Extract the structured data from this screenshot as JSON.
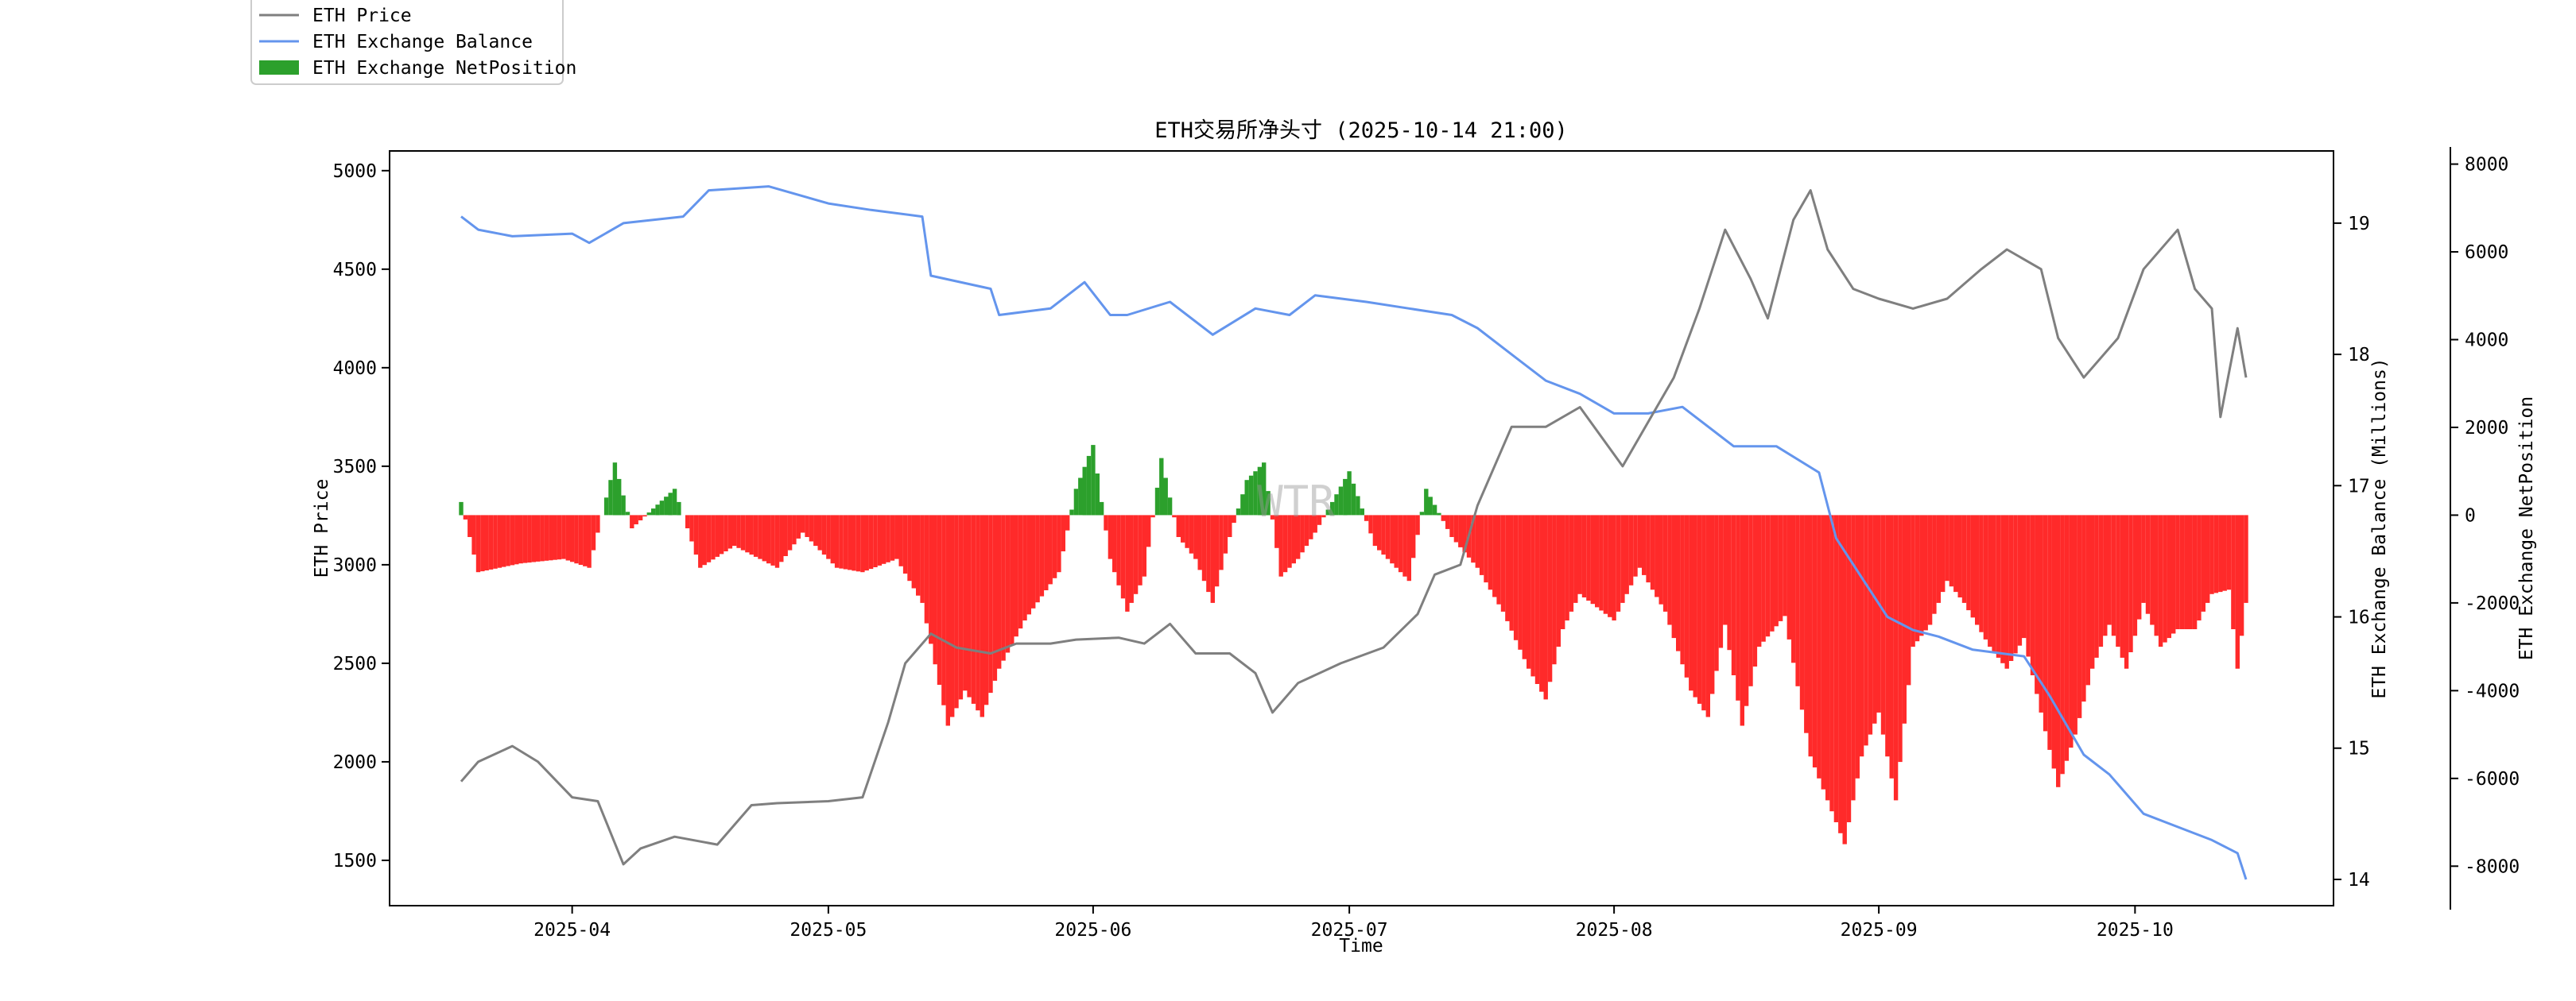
{
  "chart_data": {
    "type": "line",
    "title": "ETH交易所净头寸 (2025-10-14 21:00)",
    "xlabel": "Time",
    "ylabel_left": "ETH Price",
    "ylabel_right": "ETH Exchange Balance (Millions)",
    "ylabel_far_right": "ETH Exchange NetPosition",
    "watermark": "WTR",
    "x_ticks": [
      "2025-04",
      "2025-05",
      "2025-06",
      "2025-07",
      "2025-08",
      "2025-09",
      "2025-10"
    ],
    "x_range": [
      "2025-03-19",
      "2025-10-14"
    ],
    "y_left_range": [
      1270,
      5100
    ],
    "y_left_ticks": [
      "1500",
      "2000",
      "2500",
      "3000",
      "3500",
      "4000",
      "4500",
      "5000"
    ],
    "y_right_range": [
      13.8,
      19.55
    ],
    "y_right_ticks": [
      "14",
      "15",
      "16",
      "17",
      "18",
      "19"
    ],
    "y_far_right_range": [
      -8900,
      8300
    ],
    "y_far_right_ticks": [
      "8000",
      "6000",
      "4000",
      "2000",
      "0",
      "-2000",
      "-4000",
      "-6000",
      "-8000"
    ],
    "legend": {
      "placement": "top-left, outside plot",
      "entries": [
        "ETH Price",
        "ETH Exchange Balance",
        "ETH Exchange NetPosition"
      ]
    },
    "colors": {
      "price": "#7f7f7f",
      "balance": "#6495ed",
      "net_positive": "#2ca02c",
      "net_negative": "#ff2a2a"
    },
    "series": [
      {
        "name": "ETH Price",
        "axis": "left",
        "x": [
          "2025-03-19",
          "2025-03-21",
          "2025-03-25",
          "2025-03-28",
          "2025-04-01",
          "2025-04-04",
          "2025-04-07",
          "2025-04-09",
          "2025-04-13",
          "2025-04-18",
          "2025-04-22",
          "2025-04-25",
          "2025-05-01",
          "2025-05-05",
          "2025-05-08",
          "2025-05-10",
          "2025-05-13",
          "2025-05-16",
          "2025-05-20",
          "2025-05-23",
          "2025-05-27",
          "2025-05-30",
          "2025-06-04",
          "2025-06-07",
          "2025-06-10",
          "2025-06-13",
          "2025-06-17",
          "2025-06-20",
          "2025-06-22",
          "2025-06-25",
          "2025-06-30",
          "2025-07-05",
          "2025-07-09",
          "2025-07-11",
          "2025-07-14",
          "2025-07-16",
          "2025-07-20",
          "2025-07-24",
          "2025-07-28",
          "2025-08-02",
          "2025-08-04",
          "2025-08-08",
          "2025-08-11",
          "2025-08-14",
          "2025-08-17",
          "2025-08-19",
          "2025-08-22",
          "2025-08-24",
          "2025-08-26",
          "2025-08-29",
          "2025-09-01",
          "2025-09-05",
          "2025-09-09",
          "2025-09-13",
          "2025-09-16",
          "2025-09-20",
          "2025-09-22",
          "2025-09-25",
          "2025-09-29",
          "2025-10-02",
          "2025-10-06",
          "2025-10-08",
          "2025-10-10",
          "2025-10-11",
          "2025-10-13",
          "2025-10-14"
        ],
        "values": [
          1900,
          2000,
          2080,
          2000,
          1820,
          1800,
          1480,
          1560,
          1620,
          1580,
          1780,
          1790,
          1800,
          1820,
          2200,
          2500,
          2650,
          2580,
          2550,
          2600,
          2600,
          2620,
          2630,
          2600,
          2700,
          2550,
          2550,
          2450,
          2250,
          2400,
          2500,
          2580,
          2750,
          2950,
          3000,
          3300,
          3700,
          3700,
          3800,
          3500,
          3650,
          3950,
          4300,
          4700,
          4450,
          4250,
          4750,
          4900,
          4600,
          4400,
          4350,
          4300,
          4350,
          4500,
          4600,
          4500,
          4150,
          3950,
          4150,
          4500,
          4700,
          4400,
          4300,
          3750,
          4200,
          3950
        ]
      },
      {
        "name": "ETH Exchange Balance",
        "axis": "right",
        "x": [
          "2025-03-19",
          "2025-03-21",
          "2025-03-25",
          "2025-04-01",
          "2025-04-03",
          "2025-04-07",
          "2025-04-14",
          "2025-04-17",
          "2025-04-24",
          "2025-05-01",
          "2025-05-06",
          "2025-05-12",
          "2025-05-13",
          "2025-05-20",
          "2025-05-21",
          "2025-05-27",
          "2025-05-31",
          "2025-06-03",
          "2025-06-05",
          "2025-06-10",
          "2025-06-15",
          "2025-06-20",
          "2025-06-24",
          "2025-06-27",
          "2025-07-03",
          "2025-07-08",
          "2025-07-13",
          "2025-07-16",
          "2025-07-20",
          "2025-07-24",
          "2025-07-28",
          "2025-08-01",
          "2025-08-05",
          "2025-08-09",
          "2025-08-15",
          "2025-08-20",
          "2025-08-25",
          "2025-08-27",
          "2025-08-30",
          "2025-09-02",
          "2025-09-05",
          "2025-09-08",
          "2025-09-12",
          "2025-09-18",
          "2025-09-21",
          "2025-09-25",
          "2025-09-28",
          "2025-10-02",
          "2025-10-06",
          "2025-10-10",
          "2025-10-13",
          "2025-10-14"
        ],
        "values": [
          19.05,
          18.95,
          18.9,
          18.92,
          18.85,
          19.0,
          19.05,
          19.25,
          19.28,
          19.15,
          19.1,
          19.05,
          18.6,
          18.5,
          18.3,
          18.35,
          18.55,
          18.3,
          18.3,
          18.4,
          18.15,
          18.35,
          18.3,
          18.45,
          18.4,
          18.35,
          18.3,
          18.2,
          18.0,
          17.8,
          17.7,
          17.55,
          17.55,
          17.6,
          17.3,
          17.3,
          17.1,
          16.6,
          16.3,
          16.0,
          15.9,
          15.85,
          15.75,
          15.7,
          15.4,
          14.95,
          14.8,
          14.5,
          14.4,
          14.3,
          14.2,
          14.0
        ]
      },
      {
        "name": "ETH Exchange NetPosition",
        "axis": "far_right",
        "type": "bar",
        "x": [
          "2025-03-19",
          "2025-03-21",
          "2025-03-26",
          "2025-03-31",
          "2025-04-03",
          "2025-04-06",
          "2025-04-08",
          "2025-04-13",
          "2025-04-16",
          "2025-04-20",
          "2025-04-25",
          "2025-04-28",
          "2025-05-02",
          "2025-05-05",
          "2025-05-09",
          "2025-05-12",
          "2025-05-15",
          "2025-05-17",
          "2025-05-19",
          "2025-05-21",
          "2025-05-24",
          "2025-05-28",
          "2025-05-30",
          "2025-06-01",
          "2025-06-03",
          "2025-06-05",
          "2025-06-07",
          "2025-06-09",
          "2025-06-11",
          "2025-06-13",
          "2025-06-15",
          "2025-06-17",
          "2025-06-19",
          "2025-06-21",
          "2025-06-23",
          "2025-06-25",
          "2025-06-27",
          "2025-07-01",
          "2025-07-04",
          "2025-07-08",
          "2025-07-10",
          "2025-07-13",
          "2025-07-16",
          "2025-07-19",
          "2025-07-22",
          "2025-07-24",
          "2025-07-26",
          "2025-07-28",
          "2025-08-01",
          "2025-08-04",
          "2025-08-07",
          "2025-08-10",
          "2025-08-12",
          "2025-08-14",
          "2025-08-16",
          "2025-08-18",
          "2025-08-21",
          "2025-08-24",
          "2025-08-26",
          "2025-08-28",
          "2025-08-30",
          "2025-09-01",
          "2025-09-03",
          "2025-09-05",
          "2025-09-07",
          "2025-09-09",
          "2025-09-11",
          "2025-09-14",
          "2025-09-16",
          "2025-09-18",
          "2025-09-20",
          "2025-09-22",
          "2025-09-24",
          "2025-09-26",
          "2025-09-28",
          "2025-09-30",
          "2025-10-02",
          "2025-10-04",
          "2025-10-06",
          "2025-10-08",
          "2025-10-10",
          "2025-10-12",
          "2025-10-13",
          "2025-10-14"
        ],
        "values": [
          300,
          -1300,
          -1100,
          -1000,
          -1200,
          1200,
          -300,
          600,
          -1200,
          -700,
          -1200,
          -400,
          -1200,
          -1300,
          -1000,
          -2000,
          -4800,
          -4000,
          -4600,
          -3500,
          -2400,
          -1300,
          600,
          1600,
          -1000,
          -2200,
          -1400,
          1300,
          -500,
          -1000,
          -2000,
          -500,
          800,
          1200,
          -1400,
          -1000,
          -400,
          1000,
          -700,
          -1500,
          600,
          -500,
          -1200,
          -2200,
          -3500,
          -4200,
          -2600,
          -1800,
          -2400,
          -1200,
          -2200,
          -4000,
          -4600,
          -2500,
          -4800,
          -3000,
          -2300,
          -5500,
          -6500,
          -7500,
          -5500,
          -4500,
          -6500,
          -3000,
          -2500,
          -1500,
          -2000,
          -3000,
          -3500,
          -2800,
          -4500,
          -6200,
          -5000,
          -3500,
          -2500,
          -3500,
          -2000,
          -3000,
          -2600,
          -2600,
          -1800,
          -1700,
          -3500,
          -2000
        ]
      }
    ]
  }
}
